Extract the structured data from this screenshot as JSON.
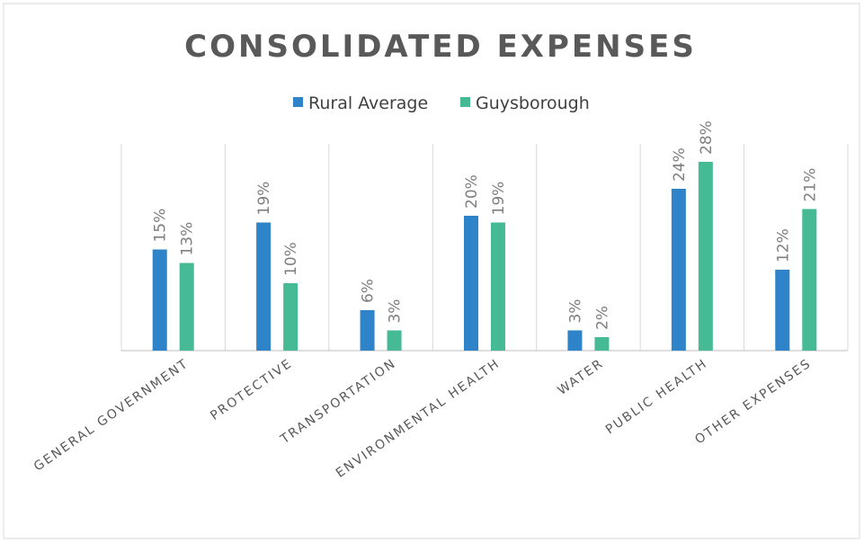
{
  "chart_data": {
    "type": "bar",
    "title": "CONSOLIDATED EXPENSES",
    "categories": [
      "GENERAL GOVERNMENT",
      "PROTECTIVE",
      "TRANSPORTATION",
      "ENVIRONMENTAL HEALTH",
      "WATER",
      "PUBLIC HEALTH",
      "OTHER EXPENSES"
    ],
    "series": [
      {
        "name": "Rural Average",
        "color": "#2e83c9",
        "values": [
          15,
          19,
          6,
          20,
          3,
          24,
          12
        ],
        "value_labels": [
          "15%",
          "19%",
          "6%",
          "20%",
          "3%",
          "24%",
          "12%"
        ]
      },
      {
        "name": "Guysborough",
        "color": "#46ba95",
        "values": [
          13,
          10,
          3,
          19,
          2,
          28,
          21
        ],
        "value_labels": [
          "13%",
          "10%",
          "3%",
          "19%",
          "2%",
          "28%",
          "21%"
        ]
      }
    ],
    "legend": "top"
  }
}
